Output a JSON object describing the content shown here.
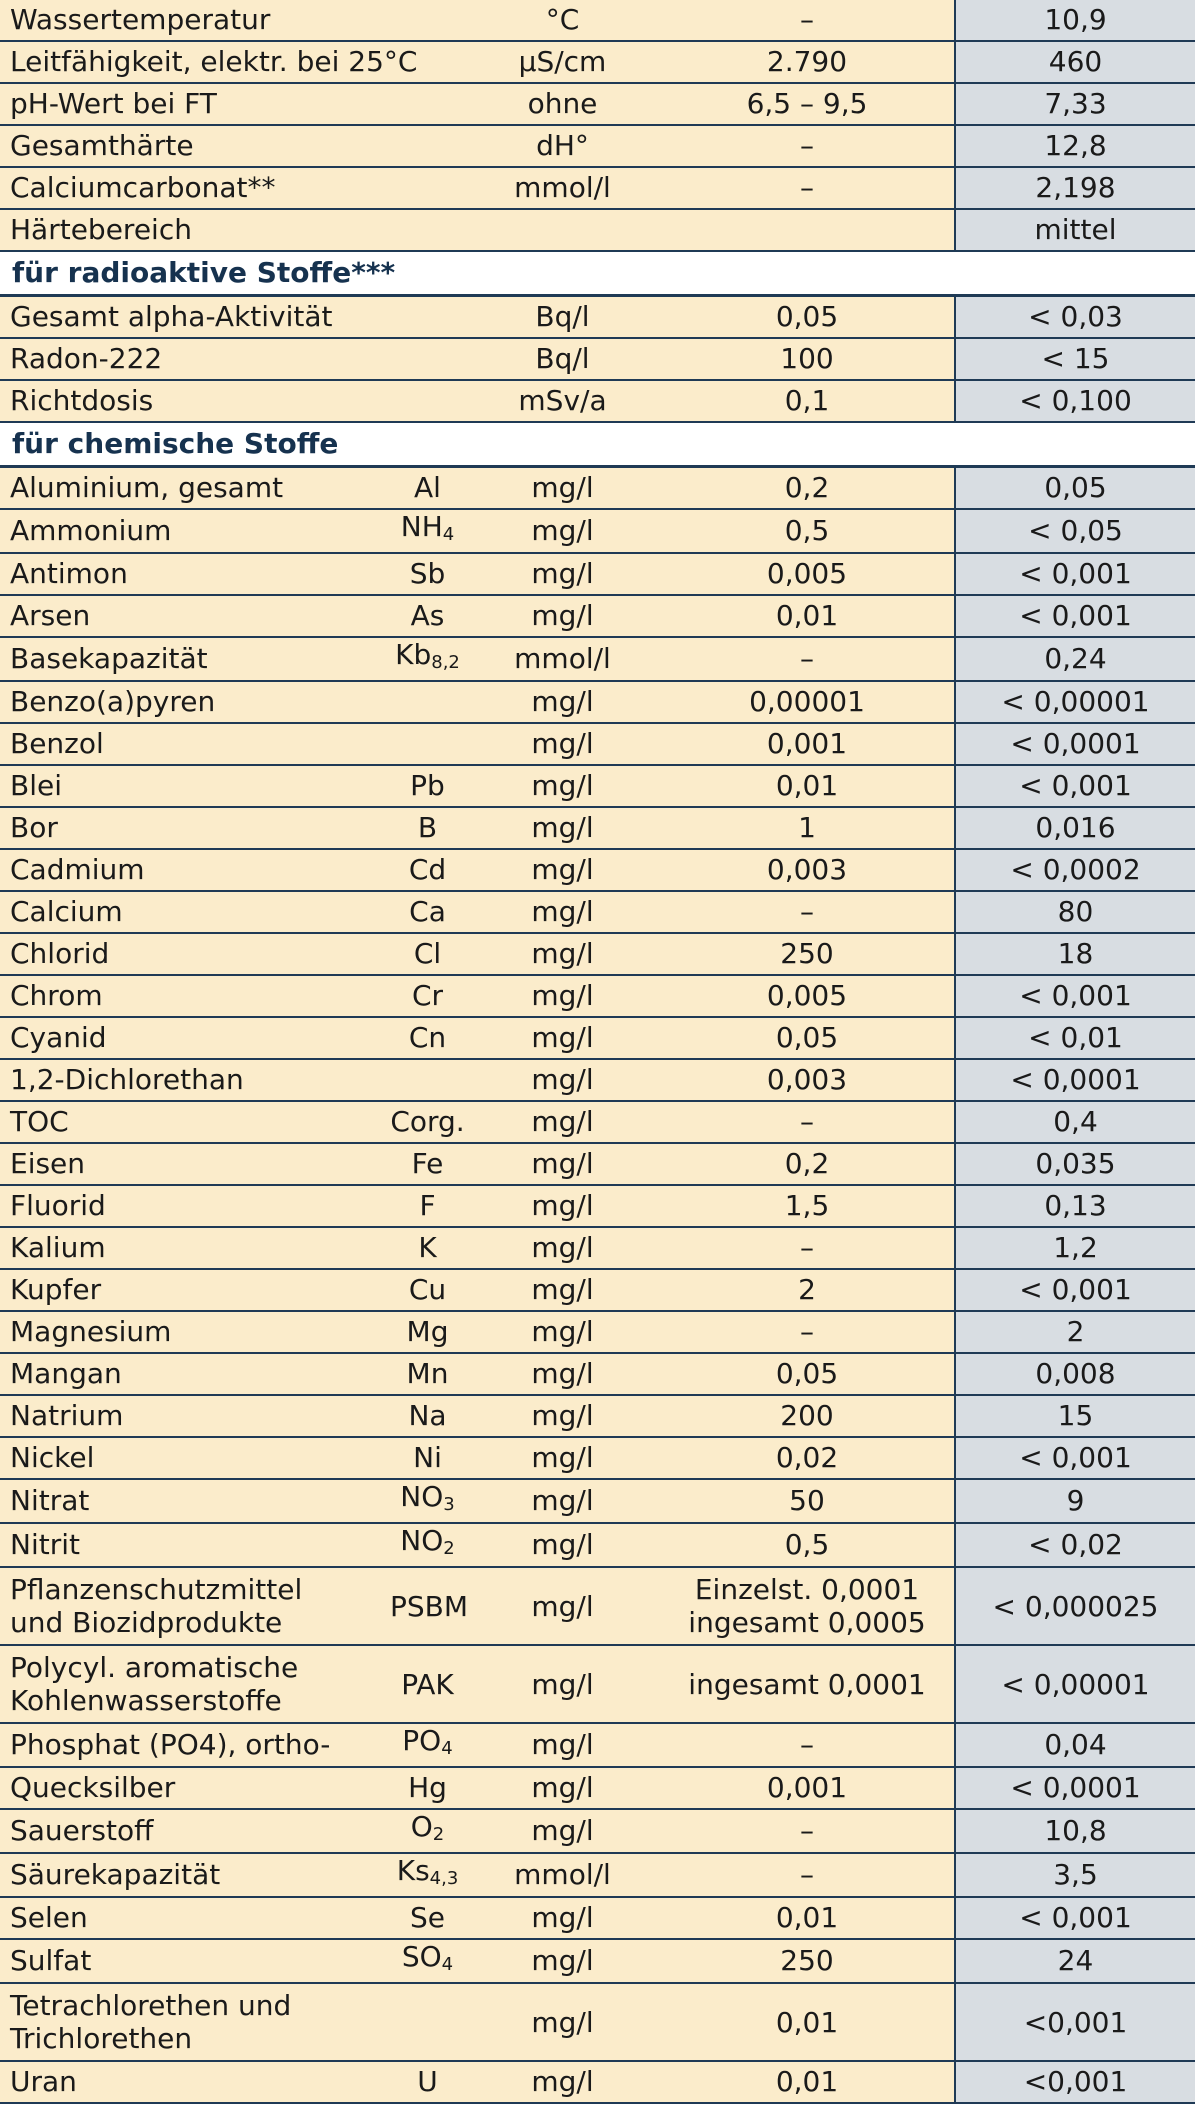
{
  "rows": [
    {
      "type": "data",
      "name": "Wassertemperatur",
      "symbol": "",
      "unit": "°C",
      "limit": "–",
      "value": "10,9"
    },
    {
      "type": "data",
      "name": "Leitfähigkeit, elektr. bei 25°C",
      "symbol": "",
      "unit": "µS/cm",
      "limit": "2.790",
      "value": "460"
    },
    {
      "type": "data",
      "name": "pH-Wert bei FT",
      "symbol": "",
      "unit": "ohne",
      "limit": "6,5 – 9,5",
      "value": "7,33"
    },
    {
      "type": "data",
      "name": "Gesamthärte",
      "symbol": "",
      "unit": "dH°",
      "limit": "–",
      "value": "12,8"
    },
    {
      "type": "data",
      "name": "Calciumcarbonat**",
      "symbol": "",
      "unit": "mmol/l",
      "limit": "–",
      "value": "2,198"
    },
    {
      "type": "data",
      "name": "Härtebereich",
      "symbol": "",
      "unit": "",
      "limit": "",
      "value": "mittel"
    },
    {
      "type": "section",
      "label": "für radioaktive Stoffe***"
    },
    {
      "type": "data",
      "name": "Gesamt alpha-Aktivität",
      "symbol": "",
      "unit": "Bq/l",
      "limit": "0,05",
      "value": "< 0,03"
    },
    {
      "type": "data",
      "name": "Radon-222",
      "symbol": "",
      "unit": "Bq/l",
      "limit": "100",
      "value": "< 15"
    },
    {
      "type": "data",
      "name": "Richtdosis",
      "symbol": "",
      "unit": "mSv/a",
      "limit": "0,1",
      "value": "< 0,100"
    },
    {
      "type": "section",
      "label": "für chemische Stoffe"
    },
    {
      "type": "data",
      "name": "Aluminium, gesamt",
      "symbol": "Al",
      "unit": "mg/l",
      "limit": "0,2",
      "value": "0,05"
    },
    {
      "type": "data",
      "name": "Ammonium",
      "symbol": "NH",
      "sub": "4",
      "unit": "mg/l",
      "limit": "0,5",
      "value": "< 0,05"
    },
    {
      "type": "data",
      "name": "Antimon",
      "symbol": "Sb",
      "unit": "mg/l",
      "limit": "0,005",
      "value": "< 0,001"
    },
    {
      "type": "data",
      "name": "Arsen",
      "symbol": "As",
      "unit": "mg/l",
      "limit": "0,01",
      "value": "< 0,001"
    },
    {
      "type": "data",
      "name": "Basekapazität",
      "symbol": "Kb",
      "sub": "8,2",
      "unit": "mmol/l",
      "limit": "–",
      "value": "0,24"
    },
    {
      "type": "data",
      "name": "Benzo(a)pyren",
      "symbol": "",
      "unit": "mg/l",
      "limit": "0,00001",
      "value": "< 0,00001"
    },
    {
      "type": "data",
      "name": "Benzol",
      "symbol": "",
      "unit": "mg/l",
      "limit": "0,001",
      "value": "< 0,0001"
    },
    {
      "type": "data",
      "name": "Blei",
      "symbol": "Pb",
      "unit": "mg/l",
      "limit": "0,01",
      "value": "< 0,001"
    },
    {
      "type": "data",
      "name": "Bor",
      "symbol": "B",
      "unit": "mg/l",
      "limit": "1",
      "value": "0,016"
    },
    {
      "type": "data",
      "name": "Cadmium",
      "symbol": "Cd",
      "unit": "mg/l",
      "limit": "0,003",
      "value": "< 0,0002"
    },
    {
      "type": "data",
      "name": "Calcium",
      "symbol": "Ca",
      "unit": "mg/l",
      "limit": "–",
      "value": "80"
    },
    {
      "type": "data",
      "name": "Chlorid",
      "symbol": "Cl",
      "unit": "mg/l",
      "limit": "250",
      "value": "18"
    },
    {
      "type": "data",
      "name": "Chrom",
      "symbol": "Cr",
      "unit": "mg/l",
      "limit": "0,005",
      "value": "< 0,001"
    },
    {
      "type": "data",
      "name": "Cyanid",
      "symbol": "Cn",
      "unit": "mg/l",
      "limit": "0,05",
      "value": "< 0,01"
    },
    {
      "type": "data",
      "name": "1,2-Dichlorethan",
      "symbol": "",
      "unit": "mg/l",
      "limit": "0,003",
      "value": "< 0,0001"
    },
    {
      "type": "data",
      "name": "TOC",
      "symbol": "Corg.",
      "unit": "mg/l",
      "limit": "–",
      "value": "0,4"
    },
    {
      "type": "data",
      "name": "Eisen",
      "symbol": "Fe",
      "unit": "mg/l",
      "limit": "0,2",
      "value": "0,035"
    },
    {
      "type": "data",
      "name": "Fluorid",
      "symbol": "F",
      "unit": "mg/l",
      "limit": "1,5",
      "value": "0,13"
    },
    {
      "type": "data",
      "name": "Kalium",
      "symbol": "K",
      "unit": "mg/l",
      "limit": "–",
      "value": "1,2"
    },
    {
      "type": "data",
      "name": "Kupfer",
      "symbol": "Cu",
      "unit": "mg/l",
      "limit": "2",
      "value": "< 0,001"
    },
    {
      "type": "data",
      "name": "Magnesium",
      "symbol": "Mg",
      "unit": "mg/l",
      "limit": "–",
      "value": "2"
    },
    {
      "type": "data",
      "name": "Mangan",
      "symbol": "Mn",
      "unit": "mg/l",
      "limit": "0,05",
      "value": "0,008"
    },
    {
      "type": "data",
      "name": "Natrium",
      "symbol": "Na",
      "unit": "mg/l",
      "limit": "200",
      "value": "15"
    },
    {
      "type": "data",
      "name": "Nickel",
      "symbol": "Ni",
      "unit": "mg/l",
      "limit": "0,02",
      "value": "< 0,001"
    },
    {
      "type": "data",
      "name": "Nitrat",
      "symbol": "NO",
      "sub": "3",
      "unit": "mg/l",
      "limit": "50",
      "value": "9"
    },
    {
      "type": "data",
      "name": "Nitrit",
      "symbol": "NO",
      "sub": "2",
      "unit": "mg/l",
      "limit": "0,5",
      "value": "< 0,02"
    },
    {
      "type": "data",
      "tall": true,
      "name": "Pflanzenschutzmittel\nund Biozidprodukte",
      "symbol": "PSBM",
      "unit": "mg/l",
      "limit": "Einzelst. 0,0001\ningesamt 0,0005",
      "value": "< 0,000025"
    },
    {
      "type": "data",
      "tall": true,
      "name": "Polycyl. aromatische\nKohlenwasserstoffe",
      "symbol": "PAK",
      "unit": "mg/l",
      "limit": "ingesamt 0,0001",
      "value": "< 0,00001"
    },
    {
      "type": "data",
      "name": "Phosphat (PO4), ortho-",
      "symbol": "PO",
      "sub": "4",
      "unit": "mg/l",
      "limit": "–",
      "value": "0,04"
    },
    {
      "type": "data",
      "name": "Quecksilber",
      "symbol": "Hg",
      "unit": "mg/l",
      "limit": "0,001",
      "value": "< 0,0001"
    },
    {
      "type": "data",
      "name": "Sauerstoff",
      "symbol": "O",
      "sub": "2",
      "unit": "mg/l",
      "limit": "–",
      "value": "10,8"
    },
    {
      "type": "data",
      "name": "Säurekapazität",
      "symbol": "Ks",
      "sub": "4,3",
      "unit": "mmol/l",
      "limit": "–",
      "value": "3,5"
    },
    {
      "type": "data",
      "name": "Selen",
      "symbol": "Se",
      "unit": "mg/l",
      "limit": "0,01",
      "value": "< 0,001"
    },
    {
      "type": "data",
      "name": "Sulfat",
      "symbol": "SO",
      "sub": "4",
      "unit": "mg/l",
      "limit": "250",
      "value": "24"
    },
    {
      "type": "data",
      "tall": true,
      "name": "Tetrachlorethen und\nTrichlorethen",
      "symbol": "",
      "unit": "mg/l",
      "limit": "0,01",
      "value": "<0,001"
    },
    {
      "type": "data",
      "name": "Uran",
      "symbol": "U",
      "unit": "mg/l",
      "limit": "0,01",
      "value": "<0,001"
    }
  ]
}
